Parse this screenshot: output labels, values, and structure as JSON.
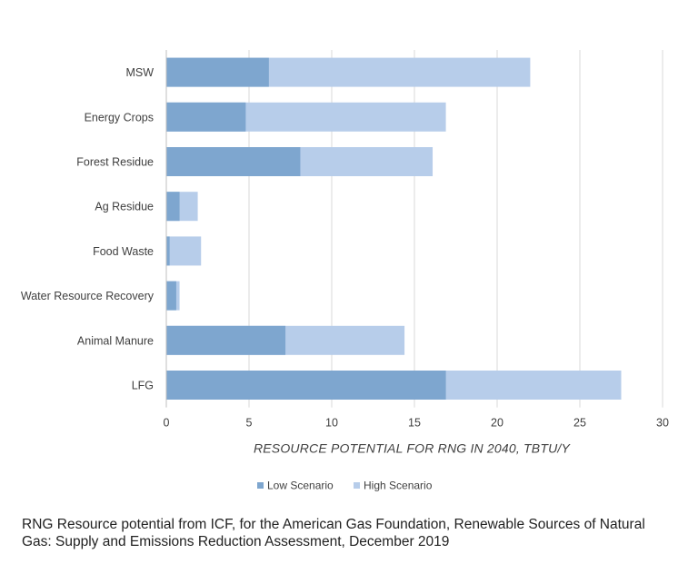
{
  "chart_data": {
    "type": "bar",
    "orientation": "horizontal",
    "stacked": false,
    "categories": [
      "MSW",
      "Energy Crops",
      "Forest Residue",
      "Ag Residue",
      "Food Waste",
      "Water Resource Recovery",
      "Animal Manure",
      "LFG"
    ],
    "series": [
      {
        "name": "Low Scenario",
        "color": "#7ea6cf",
        "values": [
          6.2,
          4.8,
          8.1,
          0.8,
          0.2,
          0.6,
          7.2,
          16.9
        ]
      },
      {
        "name": "High Scenario",
        "color": "#b7cdea",
        "values": [
          22.0,
          16.9,
          16.1,
          1.9,
          2.1,
          0.8,
          14.4,
          27.5
        ]
      }
    ],
    "xlabel": "RESOURCE POTENTIAL FOR RNG IN 2040, TBTU/Y",
    "ylabel": "",
    "xlim": [
      0,
      30
    ],
    "xticks": [
      0,
      5,
      10,
      15,
      20,
      25,
      30
    ],
    "grid": true,
    "legend_position": "bottom"
  },
  "caption": "RNG Resource potential from ICF, for the American Gas Foundation, Renewable Sources of Natural Gas: Supply and Emissions Reduction Assessment, December 2019"
}
